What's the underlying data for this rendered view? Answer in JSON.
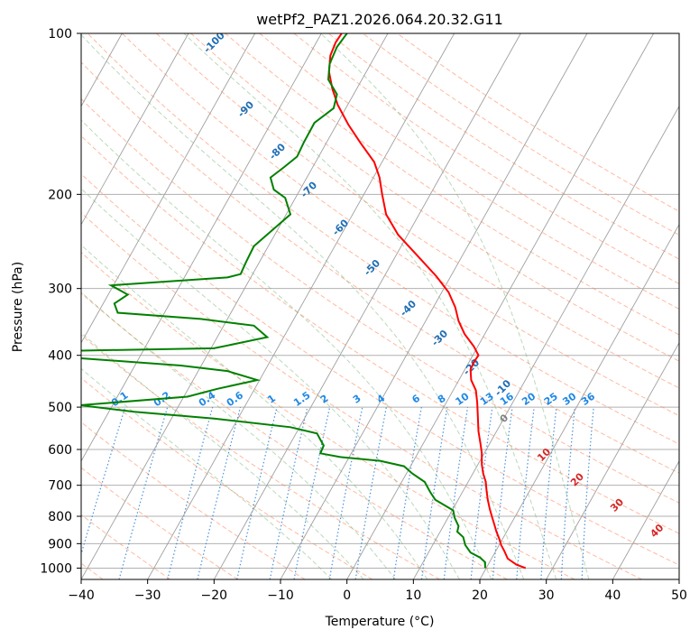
{
  "chart_data": {
    "type": "line",
    "title": "wetPf2_PAZ1.2026.064.20.32.G11",
    "xlabel": "Temperature (°C)",
    "ylabel": "Pressure (hPa)",
    "xlim": [
      -40,
      50
    ],
    "ylim": [
      1050,
      100
    ],
    "y_scale": "log",
    "x_ticks": [
      -40,
      -30,
      -20,
      -10,
      0,
      10,
      20,
      30,
      40,
      50
    ],
    "y_ticks": [
      100,
      200,
      300,
      400,
      500,
      600,
      700,
      800,
      900,
      1000
    ],
    "grid": true,
    "series": [
      {
        "color": "#ff0000",
        "points": [
          [
            26.9,
            1000
          ],
          [
            25.5,
            985
          ],
          [
            24.2,
            960
          ],
          [
            23.7,
            930
          ],
          [
            23.2,
            905
          ],
          [
            22.9,
            880
          ],
          [
            22.5,
            855
          ],
          [
            22.2,
            830
          ],
          [
            21.8,
            800
          ],
          [
            21.5,
            775
          ],
          [
            21.2,
            745
          ],
          [
            21.0,
            715
          ],
          [
            20.9,
            690
          ],
          [
            20.5,
            665
          ],
          [
            20.3,
            640
          ],
          [
            20.3,
            610
          ],
          [
            20.1,
            585
          ],
          [
            19.8,
            555
          ],
          [
            19.7,
            520
          ],
          [
            19.6,
            490
          ],
          [
            19.4,
            465
          ],
          [
            18.7,
            445
          ],
          [
            18.6,
            425
          ],
          [
            19.2,
            410
          ],
          [
            19.8,
            400
          ],
          [
            19.1,
            385
          ],
          [
            17.7,
            365
          ],
          [
            16.8,
            345
          ],
          [
            16.3,
            325
          ],
          [
            15.3,
            305
          ],
          [
            13.5,
            285
          ],
          [
            10.8,
            262
          ],
          [
            7.7,
            238
          ],
          [
            5.9,
            218
          ],
          [
            5.3,
            200
          ],
          [
            4.9,
            186
          ],
          [
            4.1,
            174
          ],
          [
            2.0,
            160
          ],
          [
            0.2,
            148
          ],
          [
            -1.4,
            136
          ],
          [
            -2.2,
            127
          ],
          [
            -2.7,
            118
          ],
          [
            -2.5,
            110
          ],
          [
            -1.7,
            104
          ],
          [
            -0.8,
            100
          ]
        ]
      },
      {
        "color": "#008000",
        "points": [
          [
            20.8,
            1000
          ],
          [
            20.8,
            975
          ],
          [
            20.0,
            955
          ],
          [
            18.6,
            935
          ],
          [
            17.8,
            905
          ],
          [
            17.5,
            875
          ],
          [
            16.6,
            855
          ],
          [
            16.8,
            835
          ],
          [
            16.2,
            805
          ],
          [
            16.0,
            780
          ],
          [
            13.3,
            745
          ],
          [
            12.5,
            720
          ],
          [
            11.7,
            690
          ],
          [
            9.8,
            665
          ],
          [
            8.6,
            645
          ],
          [
            5.0,
            630
          ],
          [
            -1.0,
            620
          ],
          [
            -4.0,
            610
          ],
          [
            -3.5,
            590
          ],
          [
            -4.0,
            575
          ],
          [
            -4.5,
            560
          ],
          [
            -8.5,
            545
          ],
          [
            -20.0,
            525
          ],
          [
            -32.0,
            510
          ],
          [
            -40.2,
            496
          ],
          [
            -24.0,
            478
          ],
          [
            -19.5,
            462
          ],
          [
            -13.5,
            445
          ],
          [
            -18.0,
            428
          ],
          [
            -25.0,
            418
          ],
          [
            -40.2,
            405
          ],
          [
            -40.2,
            392
          ],
          [
            -20.0,
            388
          ],
          [
            -12.0,
            370
          ],
          [
            -14.0,
            352
          ],
          [
            -22.0,
            342
          ],
          [
            -34.5,
            333
          ],
          [
            -35.0,
            320
          ],
          [
            -33.0,
            308
          ],
          [
            -35.5,
            296
          ],
          [
            -30.5,
            293
          ],
          [
            -25.0,
            290
          ],
          [
            -18.0,
            286
          ],
          [
            -16.0,
            282
          ],
          [
            -15.2,
            268
          ],
          [
            -14.0,
            250
          ],
          [
            -11.0,
            232
          ],
          [
            -8.5,
            218
          ],
          [
            -9.3,
            203
          ],
          [
            -11.0,
            196
          ],
          [
            -11.5,
            186
          ],
          [
            -9.5,
            178
          ],
          [
            -7.5,
            170
          ],
          [
            -6.5,
            160
          ],
          [
            -4.9,
            147
          ],
          [
            -2.0,
            138
          ],
          [
            -1.5,
            130
          ],
          [
            -2.8,
            122
          ],
          [
            -2.6,
            114
          ],
          [
            -1.5,
            106
          ],
          [
            0.0,
            100
          ]
        ]
      }
    ],
    "isotherms": [
      -100,
      -90,
      -80,
      -70,
      -60,
      -50,
      -40,
      -30,
      -20,
      -10,
      0,
      10,
      20,
      30,
      40,
      50,
      60,
      70,
      80,
      90
    ],
    "dry_adiabats": [
      -40,
      -30,
      -20,
      -10,
      0,
      10,
      20,
      30,
      40,
      50,
      60,
      70,
      80,
      90,
      100,
      110,
      120,
      130,
      140,
      150,
      160,
      170,
      180
    ],
    "moist_adiabats": [
      -5,
      0,
      5,
      10,
      15,
      20,
      25,
      30,
      35
    ],
    "dry_adiabat_labels": [
      "-100",
      "-90",
      "-80",
      "-70",
      "-60",
      "-50",
      "-40",
      "-30",
      "-20",
      "-10"
    ],
    "mixing_ratio_labels": [
      "0.1",
      "0.2",
      "0.4",
      "0.6",
      "1",
      "1.5",
      "2",
      "3",
      "4",
      "6",
      "8",
      "10",
      "13",
      "16",
      "20",
      "25",
      "30",
      "36"
    ],
    "isotherm_labels": [
      "0",
      "10",
      "20",
      "30",
      "40"
    ]
  }
}
